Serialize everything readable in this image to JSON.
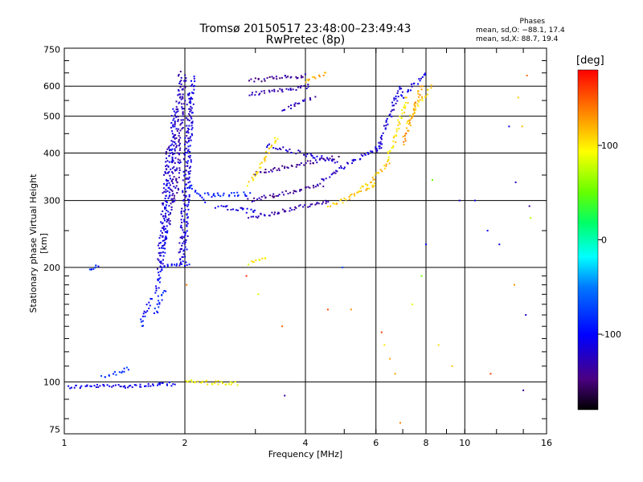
{
  "chart_data": {
    "type": "scatter",
    "title": "Tromsø 20150517 23:48:00–23:49:43",
    "subtitle": "RwPretec (8p)",
    "xlabel": "Frequency [MHz]",
    "ylabel": "Stationary phase Virtual Height [km]",
    "x_scale": "log",
    "y_scale": "log",
    "xlim": [
      1,
      16
    ],
    "ylim": [
      73,
      755
    ],
    "xticks": [
      1,
      2,
      4,
      6,
      8,
      10,
      16
    ],
    "xtick_labels": [
      "1",
      "2",
      "4",
      "6",
      "8",
      "10",
      "16"
    ],
    "yticks": [
      75,
      100,
      200,
      300,
      400,
      500,
      600,
      750
    ],
    "ytick_labels": [
      "75",
      "100",
      "200",
      "300",
      "400",
      "500",
      "600",
      "750"
    ],
    "grid": true,
    "colorbar": {
      "label": "[deg]",
      "range": [
        -180,
        180
      ],
      "ticks": [
        100,
        0,
        -100
      ],
      "tick_labels": [
        "100",
        "0",
        "-100"
      ]
    },
    "phase_stats": {
      "header": "Phases",
      "o_line": "mean, sd,O: −88.1, 17.4",
      "x_line": "mean, sd,X: 88.7, 19.4"
    },
    "segments": [
      {
        "f": [
          1.02,
          1.72
        ],
        "h": [
          97,
          98
        ],
        "phase": -110
      },
      {
        "f": [
          1.72,
          1.9
        ],
        "h": [
          98,
          99
        ],
        "phase": -105
      },
      {
        "f": [
          2.0,
          2.7
        ],
        "h": [
          100,
          99
        ],
        "phase": 95
      },
      {
        "f": [
          1.25,
          1.45
        ],
        "h": [
          103,
          108
        ],
        "phase": -80
      },
      {
        "f": [
          1.15,
          1.22
        ],
        "h": [
          198,
          201
        ],
        "phase": -90
      },
      {
        "f": [
          1.55,
          1.65
        ],
        "h": [
          140,
          165
        ],
        "phase": -95
      },
      {
        "f": [
          1.68,
          1.78
        ],
        "h": [
          150,
          175
        ],
        "phase": -90
      },
      {
        "f": [
          1.7,
          1.8
        ],
        "h": [
          170,
          250
        ],
        "phase": -100
      },
      {
        "f": [
          1.72,
          1.82
        ],
        "h": [
          200,
          420
        ],
        "phase": -120
      },
      {
        "f": [
          1.78,
          1.88
        ],
        "h": [
          230,
          520
        ],
        "phase": -110
      },
      {
        "f": [
          1.83,
          1.95
        ],
        "h": [
          260,
          650
        ],
        "phase": -125
      },
      {
        "f": [
          1.9,
          2.0
        ],
        "h": [
          300,
          640
        ],
        "phase": -130
      },
      {
        "f": [
          1.95,
          2.05
        ],
        "h": [
          205,
          580
        ],
        "phase": -120
      },
      {
        "f": [
          2.0,
          2.1
        ],
        "h": [
          210,
          640
        ],
        "phase": -110
      },
      {
        "f": [
          1.75,
          2.05
        ],
        "h": [
          200,
          205
        ],
        "phase": -100
      },
      {
        "f": [
          2.05,
          2.25
        ],
        "h": [
          330,
          300
        ],
        "phase": -95
      },
      {
        "f": [
          2.25,
          2.9
        ],
        "h": [
          310,
          312
        ],
        "phase": -90
      },
      {
        "f": [
          2.4,
          3.0
        ],
        "h": [
          290,
          280
        ],
        "phase": -110
      },
      {
        "f": [
          2.9,
          4.4
        ],
        "h": [
          300,
          330
        ],
        "phase": -140
      },
      {
        "f": [
          2.9,
          4.6
        ],
        "h": [
          270,
          300
        ],
        "phase": -130
      },
      {
        "f": [
          3.0,
          4.8
        ],
        "h": [
          355,
          390
        ],
        "phase": -140
      },
      {
        "f": [
          3.2,
          4.8
        ],
        "h": [
          420,
          380
        ],
        "phase": -120
      },
      {
        "f": [
          2.9,
          4.0
        ],
        "h": [
          620,
          640
        ],
        "phase": -140
      },
      {
        "f": [
          2.9,
          4.1
        ],
        "h": [
          570,
          600
        ],
        "phase": -130
      },
      {
        "f": [
          3.5,
          4.2
        ],
        "h": [
          520,
          560
        ],
        "phase": -125
      },
      {
        "f": [
          2.9,
          3.4
        ],
        "h": [
          330,
          440
        ],
        "phase": 105
      },
      {
        "f": [
          2.9,
          3.2
        ],
        "h": [
          205,
          210
        ],
        "phase": 95
      },
      {
        "f": [
          4.0,
          4.5
        ],
        "h": [
          620,
          650
        ],
        "phase": 120
      },
      {
        "f": [
          4.6,
          6.0
        ],
        "h": [
          290,
          330
        ],
        "phase": 110
      },
      {
        "f": [
          4.4,
          6.2
        ],
        "h": [
          340,
          420
        ],
        "phase": -120
      },
      {
        "f": [
          5.5,
          6.5
        ],
        "h": [
          320,
          380
        ],
        "phase": 115
      },
      {
        "f": [
          6.0,
          6.9
        ],
        "h": [
          400,
          600
        ],
        "phase": -115
      },
      {
        "f": [
          6.4,
          7.2
        ],
        "h": [
          380,
          560
        ],
        "phase": 100
      },
      {
        "f": [
          7.0,
          7.8
        ],
        "h": [
          420,
          600
        ],
        "phase": 130
      },
      {
        "f": [
          7.2,
          8.2
        ],
        "h": [
          480,
          600
        ],
        "phase": 110
      },
      {
        "f": [
          6.8,
          8.0
        ],
        "h": [
          550,
          650
        ],
        "phase": -110
      }
    ],
    "scattered_points": [
      {
        "f": 2.02,
        "h": 180,
        "phase": 150
      },
      {
        "f": 2.85,
        "h": 190,
        "phase": 160
      },
      {
        "f": 3.05,
        "h": 170,
        "phase": 70
      },
      {
        "f": 3.5,
        "h": 140,
        "phase": 160
      },
      {
        "f": 3.55,
        "h": 92,
        "phase": -130
      },
      {
        "f": 4.55,
        "h": 155,
        "phase": 150
      },
      {
        "f": 4.95,
        "h": 200,
        "phase": -80
      },
      {
        "f": 5.2,
        "h": 155,
        "phase": 120
      },
      {
        "f": 6.2,
        "h": 135,
        "phase": 150
      },
      {
        "f": 6.3,
        "h": 125,
        "phase": 100
      },
      {
        "f": 6.5,
        "h": 115,
        "phase": 140
      },
      {
        "f": 6.7,
        "h": 105,
        "phase": 120
      },
      {
        "f": 6.9,
        "h": 78,
        "phase": 150
      },
      {
        "f": 7.4,
        "h": 160,
        "phase": 80
      },
      {
        "f": 7.8,
        "h": 190,
        "phase": 40
      },
      {
        "f": 8.0,
        "h": 230,
        "phase": -110
      },
      {
        "f": 8.3,
        "h": 340,
        "phase": 60
      },
      {
        "f": 8.6,
        "h": 125,
        "phase": 120
      },
      {
        "f": 9.3,
        "h": 110,
        "phase": 100
      },
      {
        "f": 9.7,
        "h": 300,
        "phase": -110
      },
      {
        "f": 10.6,
        "h": 300,
        "phase": -100
      },
      {
        "f": 11.4,
        "h": 250,
        "phase": -120
      },
      {
        "f": 11.6,
        "h": 105,
        "phase": 150
      },
      {
        "f": 12.2,
        "h": 230,
        "phase": -110
      },
      {
        "f": 12.9,
        "h": 470,
        "phase": -120
      },
      {
        "f": 13.3,
        "h": 180,
        "phase": 140
      },
      {
        "f": 13.4,
        "h": 335,
        "phase": -130
      },
      {
        "f": 13.6,
        "h": 560,
        "phase": 110
      },
      {
        "f": 14.0,
        "h": 95,
        "phase": -125
      },
      {
        "f": 14.2,
        "h": 150,
        "phase": -110
      },
      {
        "f": 14.3,
        "h": 640,
        "phase": 150
      },
      {
        "f": 14.5,
        "h": 290,
        "phase": -130
      },
      {
        "f": 14.6,
        "h": 270,
        "phase": 60
      },
      {
        "f": 13.9,
        "h": 470,
        "phase": 120
      }
    ]
  }
}
